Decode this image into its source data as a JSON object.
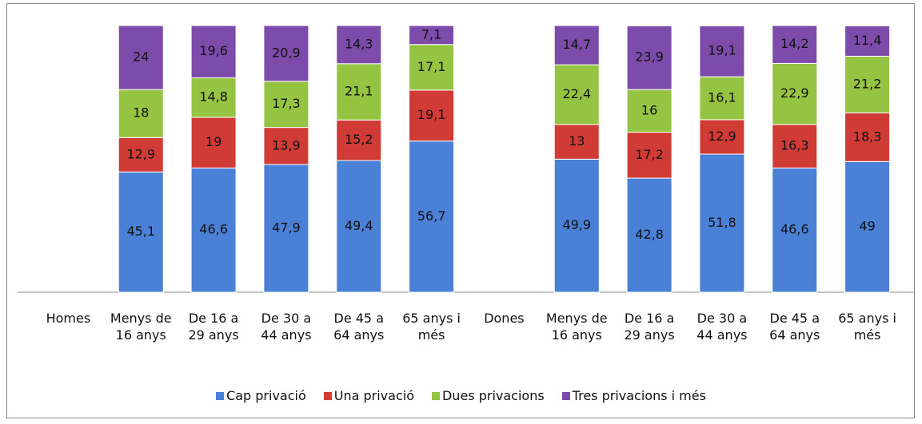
{
  "chart_data": {
    "type": "stacked_bar",
    "categories": [
      "Homes",
      "Menys de 16 anys",
      "De 16 a 29 anys",
      "De 30 a 44 anys",
      "De 45 a 64 anys",
      "65 anys i més",
      "Dones",
      "Menys de 16 anys",
      "De 16 a 29 anys",
      "De 30 a 44 anys",
      "De 45 a 64 anys",
      "65 anys i més"
    ],
    "series": [
      {
        "name": "Cap privació",
        "color": "#4a80d6",
        "values": [
          null,
          45.1,
          46.6,
          47.9,
          49.4,
          56.7,
          null,
          49.9,
          42.8,
          51.8,
          46.6,
          49
        ],
        "value_labels": [
          null,
          "45,1",
          "46,6",
          "47,9",
          "49,4",
          "56,7",
          null,
          "49,9",
          "42,8",
          "51,8",
          "46,6",
          "49"
        ]
      },
      {
        "name": "Una privació",
        "color": "#d13b36",
        "values": [
          null,
          12.9,
          19,
          13.9,
          15.2,
          19.1,
          null,
          13,
          17.2,
          12.9,
          16.3,
          18.3
        ],
        "value_labels": [
          null,
          "12,9",
          "19",
          "13,9",
          "15,2",
          "19,1",
          null,
          "13",
          "17,2",
          "12,9",
          "16,3",
          "18,3"
        ]
      },
      {
        "name": "Dues privacions",
        "color": "#95c442",
        "values": [
          null,
          18,
          14.8,
          17.3,
          21.1,
          17.1,
          null,
          22.4,
          16,
          16.1,
          22.9,
          21.2
        ],
        "value_labels": [
          null,
          "18",
          "14,8",
          "17,3",
          "21,1",
          "17,1",
          null,
          "22,4",
          "16",
          "16,1",
          "22,9",
          "21,2"
        ]
      },
      {
        "name": "Tres privacions i més",
        "color": "#7d4ba9",
        "values": [
          null,
          24,
          19.6,
          20.9,
          14.3,
          7.1,
          null,
          14.7,
          23.9,
          19.1,
          14.2,
          11.4
        ],
        "value_labels": [
          null,
          "24",
          "19,6",
          "20,9",
          "14,3",
          "7,1",
          null,
          "14,7",
          "23,9",
          "19,1",
          "14,2",
          "11,4"
        ]
      }
    ],
    "ylim": [
      0,
      100
    ],
    "legend": "bottom"
  }
}
